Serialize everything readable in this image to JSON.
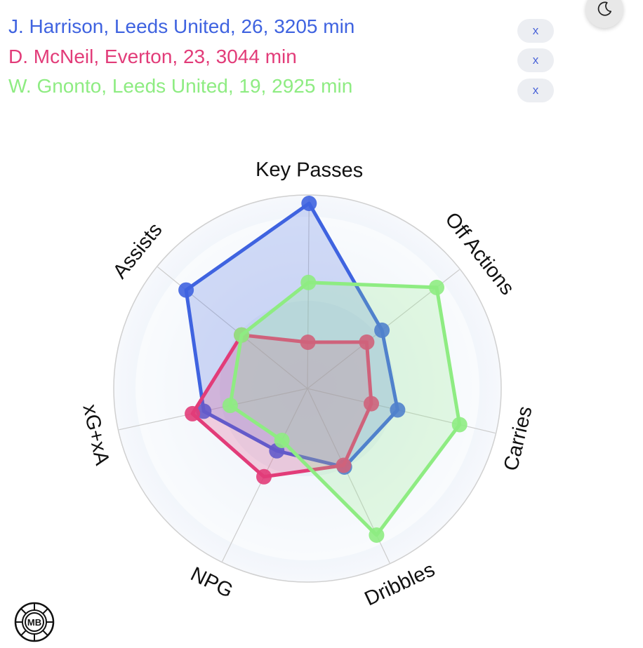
{
  "players": [
    {
      "name": "J. Harrison",
      "team": "Leeds United",
      "age": "26",
      "minutes": "3205 min",
      "label": "J. Harrison, Leeds United, 26, 3205 min",
      "color": "#3f63e0",
      "remove_label": "x"
    },
    {
      "name": "D. McNeil",
      "team": "Everton",
      "age": "23",
      "minutes": "3044 min",
      "label": "D. McNeil, Everton, 23, 3044 min",
      "color": "#e23c79",
      "remove_label": "x"
    },
    {
      "name": "W. Gnonto",
      "team": "Leeds United",
      "age": "19",
      "minutes": "2925 min",
      "label": "W. Gnonto, Leeds United, 19, 2925 min",
      "color": "#8eec82",
      "remove_label": "x"
    }
  ],
  "theme_toggle": {
    "icon": "moon-icon"
  },
  "logo": {
    "text": "MB",
    "icon": "ball-logo-icon"
  },
  "chart_data": {
    "type": "radar",
    "axes": [
      "Key Passes",
      "Off Actions",
      "Carries",
      "Dribbles",
      "NPG",
      "xG+xA",
      "Assists"
    ],
    "rmax": 1.0,
    "grid": true,
    "series": [
      {
        "name": "J. Harrison",
        "color": "#3f63e0",
        "values": [
          0.96,
          0.49,
          0.48,
          0.45,
          0.36,
          0.55,
          0.81
        ]
      },
      {
        "name": "D. McNeil",
        "color": "#e23c79",
        "values": [
          0.24,
          0.39,
          0.34,
          0.44,
          0.51,
          0.61,
          0.44
        ]
      },
      {
        "name": "W. Gnonto",
        "color": "#8eec82",
        "values": [
          0.55,
          0.85,
          0.81,
          0.84,
          0.3,
          0.41,
          0.44
        ]
      }
    ]
  }
}
